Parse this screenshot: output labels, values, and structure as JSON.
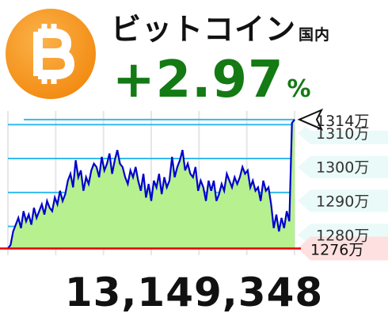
{
  "header": {
    "title": "ビットコイン",
    "title_sub": "国内",
    "change_value": "+2.97",
    "change_unit": "%",
    "logo_icon": "bitcoin-logo-icon",
    "logo_color": "#f7931a"
  },
  "price": "13,149,348",
  "chart_data": {
    "type": "area",
    "ylim": [
      1274,
      1317
    ],
    "y_unit": "万",
    "y_ticks": [
      {
        "value": 1280,
        "label": "1280万"
      },
      {
        "value": 1290,
        "label": "1290万"
      },
      {
        "value": 1300,
        "label": "1300万"
      },
      {
        "value": 1310,
        "label": "1310万"
      }
    ],
    "current": {
      "value": 1314,
      "label": "1314万"
    },
    "baseline": {
      "value": 1276,
      "label": "1276万"
    },
    "grid": true,
    "line_color": "#0000cc",
    "fill_color": "#b6f08f",
    "baseline_color": "#e60000",
    "gridline_color": "#33bbee",
    "values": [
      1276,
      1277,
      1281,
      1283,
      1285,
      1282,
      1287,
      1284,
      1286,
      1283,
      1288,
      1285,
      1287,
      1289,
      1286,
      1290,
      1288,
      1287,
      1291,
      1289,
      1293,
      1290,
      1292,
      1296,
      1298,
      1294,
      1302,
      1297,
      1299,
      1293,
      1297,
      1295,
      1299,
      1301,
      1300,
      1297,
      1303,
      1299,
      1301,
      1304,
      1298,
      1302,
      1305,
      1301,
      1300,
      1297,
      1295,
      1299,
      1297,
      1300,
      1296,
      1293,
      1298,
      1291,
      1295,
      1290,
      1296,
      1294,
      1298,
      1292,
      1297,
      1294,
      1296,
      1303,
      1297,
      1300,
      1302,
      1305,
      1299,
      1301,
      1298,
      1297,
      1300,
      1293,
      1296,
      1294,
      1290,
      1296,
      1293,
      1296,
      1290,
      1292,
      1295,
      1293,
      1298,
      1296,
      1294,
      1297,
      1295,
      1297,
      1300,
      1298,
      1299,
      1294,
      1296,
      1293,
      1294,
      1290,
      1296,
      1293,
      1294,
      1289,
      1282,
      1286,
      1281,
      1285,
      1282,
      1287,
      1284,
      1313,
      1314
    ]
  }
}
